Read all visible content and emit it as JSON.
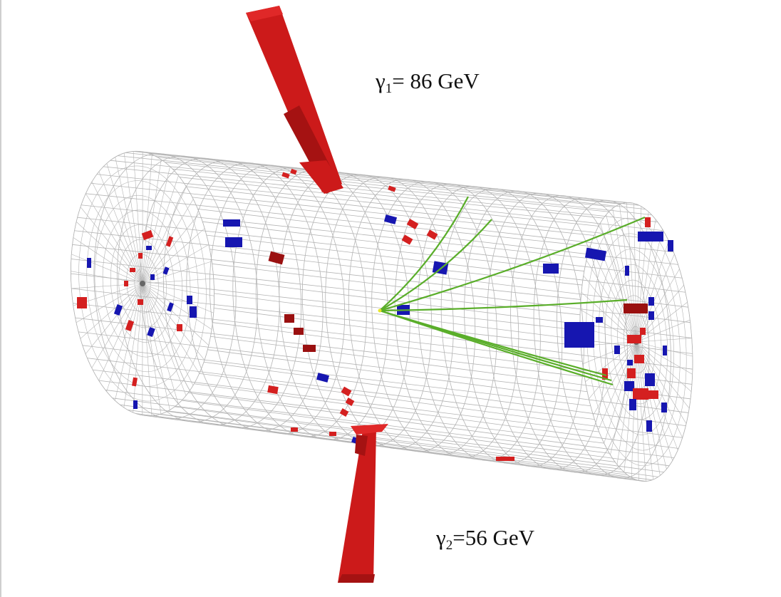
{
  "photons": [
    {
      "symbol": "γ",
      "index": "1",
      "separator": "= ",
      "energy": "86 GeV"
    },
    {
      "symbol": "γ",
      "index": "2",
      "separator": "=",
      "energy": "56 GeV"
    }
  ],
  "colors": {
    "background": "#ffffff",
    "mesh": "#b4b4b4",
    "ecal_deposit": "#d42020",
    "ecal_deposit_dark": "#9a1010",
    "hcal_deposit": "#1616b0",
    "track": "#5aae2a",
    "photon_tower": "#cc1a1a",
    "photon_tower_shade": "#a51212"
  }
}
